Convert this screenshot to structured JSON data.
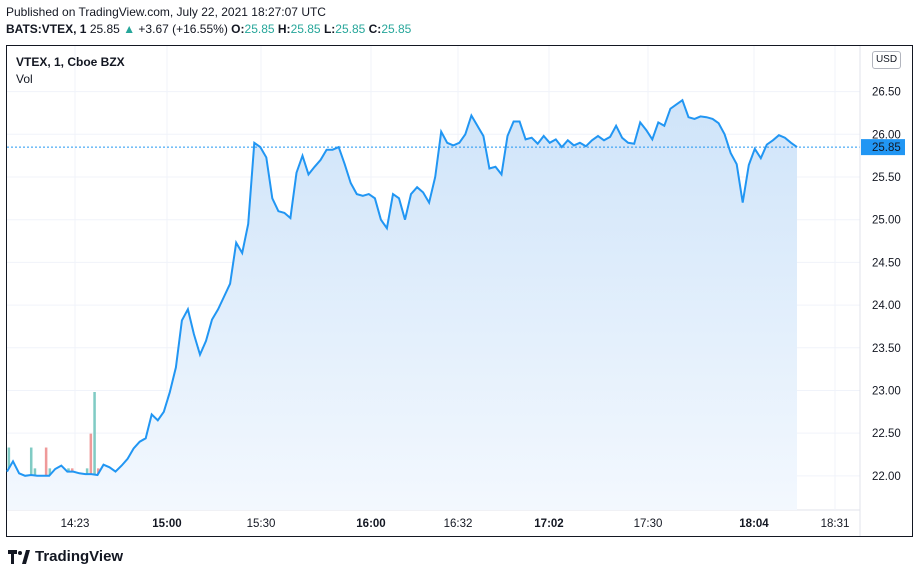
{
  "header": {
    "published": "Published on TradingView.com, July 22, 2021 18:27:07 UTC",
    "symbol": "BATS:VTEX, 1",
    "last": "25.85",
    "change": "+3.67 (+16.55%)",
    "open_label": "O:",
    "open": "25.85",
    "high_label": "H:",
    "high": "25.85",
    "low_label": "L:",
    "low": "25.85",
    "close_label": "C:",
    "close": "25.85"
  },
  "legend": {
    "title": "VTEX, 1, Cboe BZX",
    "volume_label": "Vol"
  },
  "currency": "USD",
  "footer": {
    "brand": "TradingView"
  },
  "colors": {
    "line": "#2196f3",
    "area_top": "#cfe4f9",
    "area_bottom": "#f3f8fe",
    "vol_up": "#80cbc4",
    "vol_down": "#ef9a9a",
    "last_price_label": "#2196f3",
    "up_text": "#26a69a"
  },
  "chart_data": {
    "type": "area",
    "y_axis": {
      "ticks": [
        "22.00",
        "22.50",
        "23.00",
        "23.50",
        "24.00",
        "24.50",
        "25.00",
        "25.50",
        "26.00",
        "26.50"
      ],
      "ylim": [
        21.6,
        26.8
      ]
    },
    "x_axis": {
      "labels": [
        {
          "text": "14:23",
          "bold": false
        },
        {
          "text": "15:00",
          "bold": true
        },
        {
          "text": "15:30",
          "bold": false
        },
        {
          "text": "16:00",
          "bold": true
        },
        {
          "text": "16:32",
          "bold": false
        },
        {
          "text": "17:02",
          "bold": true
        },
        {
          "text": "17:30",
          "bold": false
        },
        {
          "text": "18:04",
          "bold": true
        },
        {
          "text": "18:31",
          "bold": false
        }
      ]
    },
    "last_price": 25.85,
    "price": [
      22.05,
      22.17,
      22.03,
      22.0,
      22.01,
      22.0,
      22.0,
      22.0,
      22.08,
      22.12,
      22.05,
      22.05,
      22.03,
      22.02,
      22.02,
      22.01,
      22.13,
      22.1,
      22.05,
      22.12,
      22.2,
      22.32,
      22.4,
      22.44,
      22.72,
      22.65,
      22.75,
      22.98,
      23.27,
      23.82,
      23.95,
      23.66,
      23.42,
      23.58,
      23.83,
      23.95,
      24.1,
      24.25,
      24.73,
      24.61,
      24.95,
      25.9,
      25.85,
      25.73,
      25.25,
      25.1,
      25.08,
      25.02,
      25.55,
      25.75,
      25.53,
      25.62,
      25.7,
      25.82,
      25.82,
      25.85,
      25.65,
      25.43,
      25.3,
      25.28,
      25.3,
      25.25,
      25.0,
      24.9,
      25.3,
      25.25,
      25.0,
      25.3,
      25.38,
      25.32,
      25.2,
      25.5,
      26.03,
      25.9,
      25.87,
      25.9,
      26.0,
      26.22,
      26.1,
      25.98,
      25.6,
      25.62,
      25.53,
      25.98,
      26.15,
      26.15,
      25.94,
      25.96,
      25.89,
      25.98,
      25.9,
      25.94,
      25.85,
      25.93,
      25.87,
      25.9,
      25.86,
      25.93,
      25.98,
      25.93,
      25.97,
      26.1,
      25.96,
      25.9,
      25.89,
      26.14,
      26.05,
      25.94,
      26.14,
      26.1,
      26.3,
      26.35,
      26.4,
      26.2,
      26.18,
      26.21,
      26.2,
      26.18,
      26.13,
      26.0,
      25.78,
      25.65,
      25.2,
      25.64,
      25.83,
      25.72,
      25.88,
      25.93,
      25.99,
      25.96,
      25.9,
      25.85
    ],
    "volume_level": [
      0.18,
      0.06,
      0.06,
      0.1,
      0.06,
      0.08,
      0.18,
      0.12,
      0.06,
      0.06,
      0.18,
      0.12,
      0.08,
      0.06,
      0.06,
      0.06,
      0.12,
      0.12,
      0.1,
      0.08,
      0.06,
      0.12,
      0.22,
      0.34,
      0.12,
      0.05,
      0.12,
      0.12,
      0.06,
      0.06,
      0.06,
      0.1,
      0.07,
      0.12,
      0.12,
      0.08,
      0.12,
      0.08,
      0.06,
      0.08,
      0.12,
      0.06,
      0.12,
      0.1,
      0.06,
      0.18,
      0.12,
      0.08,
      0.06,
      0.06,
      0.06,
      0.06,
      0.06,
      0.06,
      0.1,
      0.18,
      0.1,
      0.07,
      0.06,
      0.06,
      0.1,
      0.06,
      0.08,
      0.06,
      0.06,
      0.08,
      0.1,
      0.07,
      0.06,
      0.12,
      0.06,
      0.06,
      0.06,
      0.06,
      0.08,
      0.06,
      0.06,
      0.1,
      0.1,
      0.08,
      0.06,
      0.1,
      0.12,
      0.06,
      0.12,
      0.06,
      0.06,
      0.06,
      0.06,
      0.06,
      0.08,
      0.06,
      0.06,
      0.06,
      0.06,
      0.06,
      0.06,
      0.06,
      0.06,
      0.1,
      0.06,
      0.06,
      0.06,
      0.06,
      0.06,
      0.06,
      0.12,
      0.06,
      0.06,
      0.06,
      0.06,
      0.06,
      0.06,
      0.1,
      0.1,
      0.06,
      0.1,
      0.08,
      0.1,
      0.08,
      0.06,
      0.08,
      0.06,
      0.06,
      0.1,
      0.08,
      0.08,
      0.06,
      0.06,
      0.06,
      0.06,
      0.06,
      0.06,
      0.06,
      0.06,
      0.06,
      0.06,
      0.06,
      0.06,
      0.06,
      0.08,
      0.1,
      0.1,
      0.08,
      0.2,
      0.1,
      0.08,
      0.06,
      0.06,
      0.1,
      0.06,
      0.06,
      0.1,
      0.06,
      0.08,
      0.06,
      0.06,
      0.1,
      0.16,
      0.1,
      0.06,
      0.06,
      0.06,
      0.06,
      0.1,
      0.06,
      0.08,
      0.08,
      0.04,
      0.06,
      0.06,
      0.12,
      0.08,
      0.16,
      0.1,
      0.06,
      0.06,
      0.08,
      0.06,
      0.06,
      0.06,
      0.06,
      0.06,
      0.06,
      0.06,
      0.06,
      0.06,
      0.06,
      0.06,
      0.06,
      0.06,
      0.06,
      0.06,
      0.06,
      0.06,
      0.06,
      0.06,
      0.06,
      0.06,
      0.06,
      0.06,
      0.06,
      0.06,
      0.06,
      0.06,
      0.06,
      0.06,
      0.06,
      0.06,
      0.06,
      0.06,
      0.06
    ],
    "volume_up": [
      true,
      true,
      true,
      false,
      true,
      false,
      true,
      true,
      true,
      true,
      false,
      true,
      true,
      true,
      true,
      true,
      true,
      false,
      false,
      true,
      true,
      true,
      false,
      true,
      false,
      false,
      true,
      false,
      true,
      true,
      false,
      true,
      false,
      true,
      false,
      false,
      true,
      false,
      true,
      true,
      true,
      true,
      true,
      false,
      false,
      true,
      false,
      true,
      true,
      true,
      true,
      true,
      true,
      true,
      true,
      true,
      false,
      true,
      true,
      true,
      true,
      true,
      false,
      true,
      true,
      true,
      true,
      true,
      true,
      false,
      true,
      true,
      false,
      true,
      true,
      true,
      true,
      true,
      true,
      false,
      true,
      true,
      true,
      true,
      true,
      true,
      true,
      false,
      true,
      true,
      false,
      true,
      true,
      true,
      false,
      true,
      true,
      true,
      true,
      true,
      true,
      false,
      true,
      true,
      true,
      true,
      true,
      true,
      true,
      false,
      true,
      true,
      true,
      true,
      true,
      true,
      true,
      true,
      true,
      true,
      true,
      true,
      true,
      true,
      true,
      true,
      true,
      true,
      true,
      true,
      true,
      true,
      true,
      true,
      true,
      true,
      true,
      true,
      true,
      true,
      true,
      true,
      true,
      true,
      true,
      true,
      true,
      true,
      true,
      true,
      true,
      true,
      true,
      true,
      true,
      true,
      true,
      true,
      true,
      true,
      true,
      true,
      true,
      true,
      true,
      true,
      true,
      true,
      true,
      true,
      true,
      true,
      true,
      true,
      true,
      true,
      true,
      true,
      true,
      true,
      true,
      true,
      true,
      true,
      true,
      true,
      true,
      true,
      true,
      true,
      true,
      true,
      true,
      true,
      true,
      true,
      true,
      true,
      true,
      true,
      true,
      true,
      true,
      true,
      true,
      true,
      true,
      true,
      true,
      true,
      true,
      true,
      true,
      true,
      true,
      true,
      true,
      true,
      true,
      true,
      true,
      true,
      true,
      true,
      true,
      true,
      true,
      true,
      true,
      true,
      true,
      true,
      true
    ]
  }
}
